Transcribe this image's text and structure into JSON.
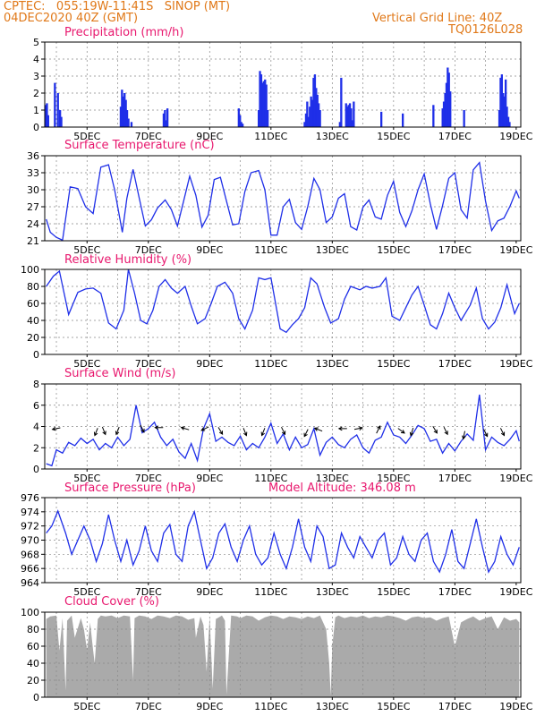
{
  "header": {
    "line1": "CPTEC:   055:19W-11:41S   SINOP (MT)",
    "line2": "04DEC2020 40Z (GMT)",
    "grid_label": "Vertical Grid Line: 40Z",
    "code": "TQ0126L028"
  },
  "colors": {
    "header": "#e07818",
    "title": "#e8186e",
    "series": "#1f2fe8",
    "cloud": "#aaaaaa"
  },
  "chart_data": [
    {
      "id": "precip",
      "type": "bar",
      "title": "Precipitation (mm/h)",
      "ylim": [
        0,
        5
      ],
      "yticks": [
        "0",
        "1",
        "2",
        "3",
        "4",
        "5"
      ],
      "xticks": [
        "5DEC",
        "7DEC",
        "9DEC",
        "11DEC",
        "13DEC",
        "15DEC",
        "17DEC",
        "19DEC"
      ],
      "bars": [
        {
          "day": 3.65,
          "values": [
            1.3,
            1.4,
            0.7
          ]
        },
        {
          "day": 3.95,
          "values": [
            2.6
          ]
        },
        {
          "day": 4.05,
          "values": [
            2.0
          ]
        },
        {
          "day": 4.12,
          "values": [
            1.0,
            0.6
          ]
        },
        {
          "day": 6.1,
          "values": [
            1.2,
            2.2,
            1.8,
            2.0,
            1.6,
            1.0,
            0.5
          ]
        },
        {
          "day": 6.45,
          "values": [
            0.3
          ]
        },
        {
          "day": 7.5,
          "values": [
            0.8,
            1.0,
            0.4,
            1.1
          ]
        },
        {
          "day": 9.95,
          "values": [
            1.1,
            0.7,
            0.3,
            0.2
          ]
        },
        {
          "day": 10.6,
          "values": [
            1.0,
            3.3,
            3.1,
            2.6,
            2.7,
            2.8,
            2.5,
            1.0
          ]
        },
        {
          "day": 12.1,
          "values": [
            0.3,
            0.8,
            1.5,
            0.6,
            1.2,
            1.8,
            1.6,
            2.9,
            3.1,
            2.3,
            1.9,
            1.4,
            1.0
          ]
        },
        {
          "day": 13.25,
          "values": [
            0.3,
            2.9
          ]
        },
        {
          "day": 13.45,
          "values": [
            1.4,
            1.2,
            1.3,
            1.4,
            1.1,
            0.4,
            1.5
          ]
        },
        {
          "day": 14.6,
          "values": [
            0.9
          ]
        },
        {
          "day": 15.3,
          "values": [
            0.8
          ]
        },
        {
          "day": 16.3,
          "values": [
            1.3
          ]
        },
        {
          "day": 16.6,
          "values": [
            1.1,
            1.5,
            2.0,
            2.6,
            3.5,
            3.2,
            2.1
          ]
        },
        {
          "day": 17.3,
          "values": [
            1.0
          ]
        },
        {
          "day": 18.45,
          "values": [
            1.0,
            2.9,
            3.1,
            2.0,
            1.8,
            2.8,
            1.2,
            0.6,
            0.3
          ]
        }
      ]
    },
    {
      "id": "temp",
      "type": "line",
      "title": "Surface Temperature (nC)",
      "ylim": [
        21,
        36
      ],
      "yticks": [
        "21",
        "24",
        "27",
        "30",
        "33",
        "36"
      ],
      "xticks": [
        "5DEC",
        "7DEC",
        "9DEC",
        "11DEC",
        "13DEC",
        "15DEC",
        "17DEC",
        "19DEC"
      ],
      "x": [
        3.67,
        3.8,
        4.0,
        4.2,
        4.45,
        4.7,
        4.95,
        5.2,
        5.45,
        5.7,
        5.9,
        6.15,
        6.3,
        6.5,
        6.7,
        6.9,
        7.1,
        7.3,
        7.55,
        7.75,
        7.95,
        8.15,
        8.35,
        8.55,
        8.75,
        8.95,
        9.15,
        9.35,
        9.55,
        9.75,
        9.95,
        10.15,
        10.35,
        10.6,
        10.8,
        11.0,
        11.2,
        11.4,
        11.6,
        11.8,
        12.0,
        12.2,
        12.4,
        12.6,
        12.8,
        13.0,
        13.2,
        13.4,
        13.6,
        13.8,
        14.0,
        14.2,
        14.4,
        14.6,
        14.8,
        15.0,
        15.2,
        15.4,
        15.6,
        15.8,
        16.0,
        16.2,
        16.4,
        16.6,
        16.8,
        17.0,
        17.2,
        17.4,
        17.6,
        17.8,
        18.0,
        18.2,
        18.4,
        18.6,
        18.8,
        19.0,
        19.1
      ],
      "y": [
        24.8,
        22.5,
        21.6,
        21.1,
        30.5,
        30.2,
        27.0,
        25.8,
        34.0,
        34.4,
        30.0,
        22.5,
        28.5,
        33.6,
        28.6,
        23.6,
        24.7,
        26.8,
        28.2,
        26.5,
        23.6,
        28.0,
        32.4,
        29.0,
        23.4,
        25.5,
        31.8,
        32.2,
        28.0,
        23.8,
        24.0,
        29.7,
        33.0,
        33.4,
        30.0,
        22.0,
        22.0,
        27.0,
        28.3,
        24.2,
        23.0,
        27.0,
        32.0,
        30.0,
        24.2,
        25.2,
        28.5,
        29.3,
        23.5,
        22.9,
        26.9,
        28.2,
        25.2,
        24.8,
        29.0,
        31.5,
        26.0,
        23.5,
        26.3,
        30.0,
        32.8,
        27.5,
        23.0,
        27.2,
        32.0,
        33.0,
        26.5,
        25.0,
        33.5,
        34.8,
        28.0,
        22.8,
        24.5,
        25.0,
        27.1,
        29.8,
        28.5
      ]
    },
    {
      "id": "rh",
      "type": "line",
      "title": "Relative Humidity (%)",
      "ylim": [
        0,
        100
      ],
      "yticks": [
        "0",
        "20",
        "40",
        "60",
        "80",
        "100"
      ],
      "xticks": [
        "5DEC",
        "7DEC",
        "9DEC",
        "11DEC",
        "13DEC",
        "15DEC",
        "17DEC",
        "19DEC"
      ],
      "x": [
        3.67,
        3.9,
        4.1,
        4.4,
        4.7,
        4.95,
        5.2,
        5.45,
        5.7,
        5.95,
        6.2,
        6.35,
        6.55,
        6.75,
        6.95,
        7.15,
        7.35,
        7.55,
        7.75,
        7.95,
        8.2,
        8.4,
        8.6,
        8.85,
        9.05,
        9.25,
        9.5,
        9.75,
        9.95,
        10.15,
        10.4,
        10.6,
        10.8,
        11.0,
        11.3,
        11.5,
        11.7,
        11.9,
        12.1,
        12.3,
        12.5,
        12.75,
        12.95,
        13.2,
        13.4,
        13.6,
        13.9,
        14.1,
        14.3,
        14.55,
        14.75,
        14.95,
        15.2,
        15.4,
        15.6,
        15.8,
        16.0,
        16.2,
        16.4,
        16.6,
        16.8,
        17.0,
        17.2,
        17.5,
        17.7,
        17.9,
        18.1,
        18.3,
        18.5,
        18.7,
        18.95,
        19.1
      ],
      "y": [
        80,
        92,
        98,
        47,
        73,
        77,
        78,
        72,
        37,
        30,
        52,
        100,
        72,
        40,
        36,
        52,
        80,
        88,
        78,
        72,
        80,
        57,
        36,
        42,
        60,
        80,
        85,
        72,
        42,
        30,
        52,
        90,
        88,
        90,
        30,
        26,
        35,
        42,
        55,
        90,
        83,
        55,
        37,
        42,
        65,
        80,
        76,
        80,
        78,
        80,
        90,
        45,
        40,
        55,
        70,
        80,
        58,
        35,
        30,
        48,
        72,
        55,
        40,
        58,
        78,
        42,
        30,
        38,
        55,
        82,
        48,
        60
      ]
    },
    {
      "id": "wind",
      "type": "line",
      "title": "Surface Wind (m/s)",
      "ylim": [
        0,
        8
      ],
      "yticks": [
        "0",
        "2",
        "4",
        "6",
        "8"
      ],
      "xticks": [
        "5DEC",
        "7DEC",
        "9DEC",
        "11DEC",
        "13DEC",
        "15DEC",
        "17DEC",
        "19DEC"
      ],
      "x": [
        3.67,
        3.85,
        4.0,
        4.2,
        4.4,
        4.6,
        4.8,
        5.0,
        5.2,
        5.4,
        5.6,
        5.8,
        6.0,
        6.2,
        6.4,
        6.6,
        6.8,
        7.0,
        7.2,
        7.4,
        7.6,
        7.8,
        8.0,
        8.2,
        8.4,
        8.6,
        8.8,
        9.0,
        9.2,
        9.4,
        9.6,
        9.8,
        10.0,
        10.2,
        10.4,
        10.6,
        10.8,
        11.0,
        11.2,
        11.4,
        11.6,
        11.8,
        12.0,
        12.2,
        12.4,
        12.6,
        12.8,
        13.0,
        13.2,
        13.4,
        13.6,
        13.8,
        14.0,
        14.2,
        14.4,
        14.6,
        14.8,
        15.0,
        15.2,
        15.4,
        15.6,
        15.8,
        16.0,
        16.2,
        16.4,
        16.6,
        16.8,
        17.0,
        17.2,
        17.4,
        17.6,
        17.8,
        18.0,
        18.2,
        18.4,
        18.6,
        18.8,
        19.0,
        19.1
      ],
      "y": [
        0.5,
        0.3,
        1.8,
        1.5,
        2.5,
        2.2,
        2.9,
        2.4,
        2.8,
        1.8,
        2.4,
        2.0,
        3.0,
        2.2,
        2.8,
        6.0,
        3.4,
        3.8,
        4.4,
        3.0,
        2.2,
        2.8,
        1.6,
        1.0,
        2.4,
        0.8,
        3.8,
        5.2,
        2.6,
        3.0,
        2.5,
        2.2,
        3.1,
        1.8,
        2.4,
        2.0,
        3.0,
        4.3,
        2.4,
        3.3,
        1.8,
        3.0,
        2.0,
        2.3,
        3.8,
        1.3,
        2.5,
        3.0,
        2.3,
        2.0,
        2.8,
        3.2,
        2.0,
        1.5,
        2.7,
        3.0,
        4.4,
        3.2,
        3.0,
        2.4,
        3.2,
        4.1,
        3.8,
        2.6,
        2.8,
        1.5,
        2.4,
        1.7,
        2.6,
        3.3,
        2.7,
        7.0,
        1.8,
        3.0,
        2.5,
        2.2,
        2.8,
        3.6,
        2.6
      ]
    },
    {
      "id": "pressure",
      "type": "line",
      "title": "Surface Pressure (hPa)",
      "subtitle": "Model Altitude: 346.08 m",
      "ylim": [
        964,
        976
      ],
      "yticks": [
        "964",
        "966",
        "968",
        "970",
        "972",
        "974",
        "976"
      ],
      "xticks": [
        "5DEC",
        "7DEC",
        "9DEC",
        "11DEC",
        "13DEC",
        "15DEC",
        "17DEC",
        "19DEC"
      ],
      "x": [
        3.67,
        3.85,
        4.05,
        4.3,
        4.5,
        4.7,
        4.9,
        5.1,
        5.3,
        5.5,
        5.7,
        5.9,
        6.1,
        6.3,
        6.5,
        6.7,
        6.9,
        7.1,
        7.3,
        7.5,
        7.7,
        7.9,
        8.1,
        8.3,
        8.5,
        8.7,
        8.9,
        9.1,
        9.3,
        9.5,
        9.7,
        9.9,
        10.1,
        10.3,
        10.5,
        10.7,
        10.9,
        11.1,
        11.3,
        11.5,
        11.7,
        11.9,
        12.1,
        12.3,
        12.5,
        12.7,
        12.9,
        13.1,
        13.3,
        13.5,
        13.7,
        13.9,
        14.1,
        14.3,
        14.5,
        14.7,
        14.9,
        15.1,
        15.3,
        15.5,
        15.7,
        15.9,
        16.1,
        16.3,
        16.5,
        16.7,
        16.9,
        17.1,
        17.3,
        17.5,
        17.7,
        17.9,
        18.1,
        18.3,
        18.5,
        18.7,
        18.9,
        19.1
      ],
      "y": [
        971.0,
        972.0,
        974.1,
        971.0,
        968.0,
        970.0,
        972.0,
        970.0,
        967.0,
        969.5,
        973.6,
        970.0,
        967.0,
        970.0,
        966.5,
        968.5,
        972.0,
        968.5,
        967.0,
        971.0,
        972.2,
        968.0,
        967.0,
        972.0,
        974.0,
        970.0,
        966.0,
        967.5,
        971.0,
        972.3,
        969.0,
        967.0,
        970.0,
        972.0,
        968.0,
        966.5,
        967.5,
        971.0,
        968.0,
        966.0,
        969.0,
        973.0,
        969.0,
        967.0,
        972.0,
        970.5,
        966.0,
        966.5,
        971.0,
        969.0,
        967.5,
        970.5,
        969.0,
        967.5,
        970.0,
        971.0,
        966.5,
        967.5,
        970.5,
        968.0,
        967.0,
        970.0,
        971.0,
        967.0,
        965.5,
        968.0,
        971.5,
        967.0,
        966.0,
        969.5,
        973.0,
        969.0,
        965.5,
        967.0,
        970.5,
        968.0,
        966.5,
        969.0
      ]
    },
    {
      "id": "cloud",
      "type": "area",
      "title": "Cloud Cover (%)",
      "ylim": [
        0,
        100
      ],
      "yticks": [
        "0",
        "20",
        "40",
        "60",
        "80",
        "100"
      ],
      "xticks": [
        "5DEC",
        "7DEC",
        "9DEC",
        "11DEC",
        "13DEC",
        "15DEC",
        "17DEC",
        "19DEC"
      ],
      "x": [
        3.67,
        3.8,
        4.0,
        4.1,
        4.2,
        4.3,
        4.35,
        4.5,
        4.6,
        4.8,
        4.9,
        5.0,
        5.1,
        5.2,
        5.25,
        5.35,
        5.45,
        5.6,
        5.8,
        6.0,
        6.2,
        6.4,
        6.5,
        6.55,
        6.7,
        6.9,
        7.1,
        7.3,
        7.5,
        7.7,
        7.9,
        8.1,
        8.3,
        8.5,
        8.55,
        8.7,
        8.8,
        8.9,
        9.0,
        9.1,
        9.2,
        9.3,
        9.4,
        9.5,
        9.55,
        9.7,
        9.9,
        10.0,
        10.2,
        10.4,
        10.6,
        10.8,
        11.0,
        11.2,
        11.4,
        11.6,
        11.8,
        12.0,
        12.2,
        12.4,
        12.6,
        12.8,
        12.9,
        12.95,
        13.0,
        13.1,
        13.2,
        13.4,
        13.6,
        13.8,
        14.0,
        14.2,
        14.4,
        14.6,
        14.8,
        15.0,
        15.2,
        15.4,
        15.6,
        15.8,
        16.0,
        16.2,
        16.4,
        16.6,
        16.8,
        17.0,
        17.2,
        17.4,
        17.6,
        17.8,
        18.0,
        18.2,
        18.4,
        18.6,
        18.8,
        19.0,
        19.1
      ],
      "y": [
        92,
        95,
        96,
        55,
        93,
        8,
        90,
        96,
        70,
        93,
        80,
        55,
        88,
        55,
        40,
        92,
        96,
        95,
        96,
        93,
        96,
        95,
        20,
        93,
        96,
        95,
        92,
        96,
        95,
        93,
        96,
        95,
        91,
        93,
        70,
        95,
        85,
        30,
        95,
        10,
        92,
        94,
        96,
        90,
        3,
        96,
        95,
        93,
        96,
        95,
        90,
        94,
        96,
        95,
        92,
        95,
        94,
        92,
        95,
        93,
        96,
        80,
        40,
        2,
        60,
        94,
        96,
        93,
        95,
        94,
        96,
        93,
        95,
        94,
        96,
        95,
        93,
        90,
        94,
        95,
        93,
        94,
        90,
        93,
        95,
        60,
        88,
        92,
        95,
        90,
        93,
        95,
        80,
        94,
        90,
        92,
        88
      ]
    }
  ]
}
